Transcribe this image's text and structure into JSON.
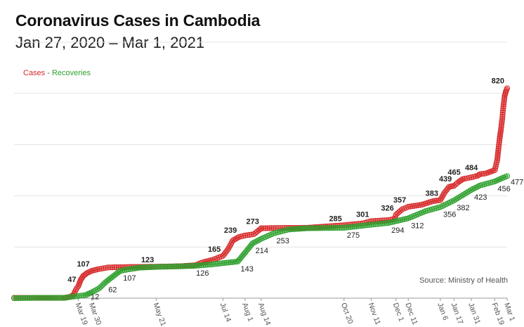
{
  "chart_data": {
    "type": "line",
    "title": "Coronavirus Cases in Cambodia",
    "subtitle": "Jan 27, 2020 – Mar 1, 2021",
    "source": "Source: Ministry of Health",
    "legend": {
      "cases": "Cases",
      "separator": " - ",
      "recoveries": "Recoveries",
      "placement": "top-left"
    },
    "colors": {
      "cases": "#d62728",
      "recoveries": "#2ca02c",
      "grid": "#e3e3e3"
    },
    "x_domain": [
      "2020-01-27",
      "2021-03-01"
    ],
    "ylim": [
      0,
      1000
    ],
    "grid": true,
    "y_ticks": [
      0,
      200,
      400,
      600,
      800,
      1000
    ],
    "x_ticks": [
      {
        "date": "2020-03-19",
        "label": "Mar 19"
      },
      {
        "date": "2020-03-30",
        "label": "Mar 30"
      },
      {
        "date": "2020-05-21",
        "label": "May 21"
      },
      {
        "date": "2020-07-14",
        "label": "Jul 14"
      },
      {
        "date": "2020-08-01",
        "label": "Aug 1"
      },
      {
        "date": "2020-08-14",
        "label": "Aug 14"
      },
      {
        "date": "2020-10-20",
        "label": "Oct 20"
      },
      {
        "date": "2020-11-11",
        "label": "Nov 11"
      },
      {
        "date": "2020-12-01",
        "label": "Dec 1"
      },
      {
        "date": "2020-12-11",
        "label": "Dec 11"
      },
      {
        "date": "2021-01-06",
        "label": "Jan 6"
      },
      {
        "date": "2021-01-17",
        "label": "Jan 17"
      },
      {
        "date": "2021-01-31",
        "label": "Jan 31"
      },
      {
        "date": "2021-02-19",
        "label": "Feb 19"
      },
      {
        "date": "2021-03-01",
        "label": "Mar 1"
      }
    ],
    "series": [
      {
        "name": "Cases",
        "key": "cases",
        "points": [
          [
            "2020-01-27",
            1
          ],
          [
            "2020-03-07",
            1
          ],
          [
            "2020-03-09",
            2
          ],
          [
            "2020-03-12",
            5
          ],
          [
            "2020-03-15",
            12
          ],
          [
            "2020-03-17",
            33
          ],
          [
            "2020-03-19",
            47
          ],
          [
            "2020-03-21",
            72
          ],
          [
            "2020-03-23",
            87
          ],
          [
            "2020-03-26",
            98
          ],
          [
            "2020-03-30",
            107
          ],
          [
            "2020-04-05",
            114
          ],
          [
            "2020-04-12",
            120
          ],
          [
            "2020-05-01",
            122
          ],
          [
            "2020-05-21",
            123
          ],
          [
            "2020-06-10",
            125
          ],
          [
            "2020-06-22",
            129
          ],
          [
            "2020-06-27",
            139
          ],
          [
            "2020-07-06",
            150
          ],
          [
            "2020-07-14",
            165
          ],
          [
            "2020-07-18",
            190
          ],
          [
            "2020-07-22",
            225
          ],
          [
            "2020-07-27",
            239
          ],
          [
            "2020-08-01",
            245
          ],
          [
            "2020-08-08",
            250
          ],
          [
            "2020-08-12",
            265
          ],
          [
            "2020-08-14",
            273
          ],
          [
            "2020-08-24",
            274
          ],
          [
            "2020-09-20",
            275
          ],
          [
            "2020-10-05",
            280
          ],
          [
            "2020-10-20",
            285
          ],
          [
            "2020-11-04",
            292
          ],
          [
            "2020-11-11",
            301
          ],
          [
            "2020-11-25",
            305
          ],
          [
            "2020-11-30",
            310
          ],
          [
            "2020-12-01",
            326
          ],
          [
            "2020-12-06",
            347
          ],
          [
            "2020-12-11",
            357
          ],
          [
            "2020-12-22",
            365
          ],
          [
            "2020-12-31",
            379
          ],
          [
            "2021-01-06",
            383
          ],
          [
            "2021-01-09",
            410
          ],
          [
            "2021-01-13",
            435
          ],
          [
            "2021-01-17",
            439
          ],
          [
            "2021-01-21",
            455
          ],
          [
            "2021-01-24",
            465
          ],
          [
            "2021-01-31",
            472
          ],
          [
            "2021-02-05",
            478
          ],
          [
            "2021-02-07",
            484
          ],
          [
            "2021-02-12",
            488
          ],
          [
            "2021-02-19",
            500
          ],
          [
            "2021-02-21",
            540
          ],
          [
            "2021-02-22",
            585
          ],
          [
            "2021-02-23",
            625
          ],
          [
            "2021-02-24",
            660
          ],
          [
            "2021-02-25",
            700
          ],
          [
            "2021-02-26",
            750
          ],
          [
            "2021-02-27",
            790
          ],
          [
            "2021-02-28",
            808
          ],
          [
            "2021-03-01",
            820
          ]
        ]
      },
      {
        "name": "Recoveries",
        "key": "recoveries",
        "points": [
          [
            "2020-01-27",
            0
          ],
          [
            "2020-02-12",
            1
          ],
          [
            "2020-03-07",
            1
          ],
          [
            "2020-03-25",
            12
          ],
          [
            "2020-03-30",
            23
          ],
          [
            "2020-04-05",
            39
          ],
          [
            "2020-04-10",
            62
          ],
          [
            "2020-04-16",
            85
          ],
          [
            "2020-04-22",
            107
          ],
          [
            "2020-05-07",
            119
          ],
          [
            "2020-05-21",
            122
          ],
          [
            "2020-06-06",
            124
          ],
          [
            "2020-06-20",
            126
          ],
          [
            "2020-07-05",
            132
          ],
          [
            "2020-07-20",
            140
          ],
          [
            "2020-07-26",
            143
          ],
          [
            "2020-08-01",
            178
          ],
          [
            "2020-08-07",
            214
          ],
          [
            "2020-08-14",
            232
          ],
          [
            "2020-08-24",
            253
          ],
          [
            "2020-09-05",
            268
          ],
          [
            "2020-09-20",
            273
          ],
          [
            "2020-10-20",
            275
          ],
          [
            "2020-11-11",
            287
          ],
          [
            "2020-11-25",
            294
          ],
          [
            "2020-12-11",
            312
          ],
          [
            "2020-12-25",
            340
          ],
          [
            "2021-01-06",
            356
          ],
          [
            "2021-01-17",
            382
          ],
          [
            "2021-01-31",
            423
          ],
          [
            "2021-02-07",
            440
          ],
          [
            "2021-02-19",
            456
          ],
          [
            "2021-02-26",
            471
          ],
          [
            "2021-03-01",
            477
          ]
        ]
      }
    ],
    "annotations": [
      {
        "series": "cases",
        "date": "2020-03-19",
        "value": 47,
        "text": "47",
        "bold": true
      },
      {
        "series": "cases",
        "date": "2020-03-30",
        "value": 107,
        "text": "107",
        "bold": true
      },
      {
        "series": "cases",
        "date": "2020-05-21",
        "value": 123,
        "text": "123",
        "bold": true
      },
      {
        "series": "cases",
        "date": "2020-07-14",
        "value": 165,
        "text": "165",
        "bold": true
      },
      {
        "series": "cases",
        "date": "2020-07-27",
        "value": 239,
        "text": "239",
        "bold": true
      },
      {
        "series": "cases",
        "date": "2020-08-14",
        "value": 273,
        "text": "273",
        "bold": true
      },
      {
        "series": "cases",
        "date": "2020-10-20",
        "value": 285,
        "text": "285",
        "bold": true
      },
      {
        "series": "cases",
        "date": "2020-11-11",
        "value": 301,
        "text": "301",
        "bold": true
      },
      {
        "series": "cases",
        "date": "2020-12-01",
        "value": 326,
        "text": "326",
        "bold": true
      },
      {
        "series": "cases",
        "date": "2020-12-11",
        "value": 357,
        "text": "357",
        "bold": true
      },
      {
        "series": "cases",
        "date": "2021-01-06",
        "value": 383,
        "text": "383",
        "bold": true
      },
      {
        "series": "cases",
        "date": "2021-01-17",
        "value": 439,
        "text": "439",
        "bold": true
      },
      {
        "series": "cases",
        "date": "2021-01-24",
        "value": 465,
        "text": "465",
        "bold": true
      },
      {
        "series": "cases",
        "date": "2021-02-07",
        "value": 484,
        "text": "484",
        "bold": true
      },
      {
        "series": "cases",
        "date": "2021-03-01",
        "value": 820,
        "text": "820",
        "bold": true
      },
      {
        "series": "recoveries",
        "date": "2020-03-25",
        "value": 12,
        "text": "12",
        "bold": false
      },
      {
        "series": "recoveries",
        "date": "2020-04-10",
        "value": 62,
        "text": "62",
        "bold": false
      },
      {
        "series": "recoveries",
        "date": "2020-04-22",
        "value": 107,
        "text": "107",
        "bold": false
      },
      {
        "series": "recoveries",
        "date": "2020-06-20",
        "value": 126,
        "text": "126",
        "bold": false
      },
      {
        "series": "recoveries",
        "date": "2020-07-26",
        "value": 143,
        "text": "143",
        "bold": false
      },
      {
        "series": "recoveries",
        "date": "2020-08-07",
        "value": 214,
        "text": "214",
        "bold": false
      },
      {
        "series": "recoveries",
        "date": "2020-08-24",
        "value": 253,
        "text": "253",
        "bold": false
      },
      {
        "series": "recoveries",
        "date": "2020-10-20",
        "value": 275,
        "text": "275",
        "bold": false
      },
      {
        "series": "recoveries",
        "date": "2020-11-25",
        "value": 294,
        "text": "294",
        "bold": false
      },
      {
        "series": "recoveries",
        "date": "2020-12-11",
        "value": 312,
        "text": "312",
        "bold": false
      },
      {
        "series": "recoveries",
        "date": "2021-01-06",
        "value": 356,
        "text": "356",
        "bold": false
      },
      {
        "series": "recoveries",
        "date": "2021-01-17",
        "value": 382,
        "text": "382",
        "bold": false
      },
      {
        "series": "recoveries",
        "date": "2021-01-31",
        "value": 423,
        "text": "423",
        "bold": false
      },
      {
        "series": "recoveries",
        "date": "2021-02-19",
        "value": 456,
        "text": "456",
        "bold": false
      },
      {
        "series": "recoveries",
        "date": "2021-03-01",
        "value": 477,
        "text": "477",
        "bold": false
      }
    ]
  }
}
